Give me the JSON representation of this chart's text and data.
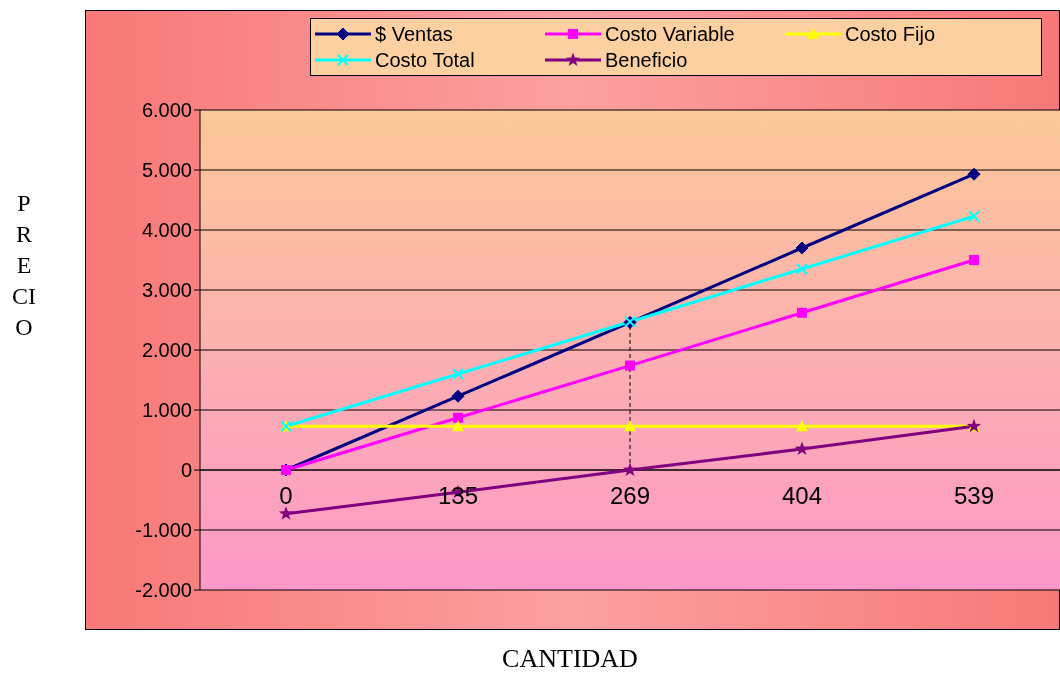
{
  "chart_data": {
    "type": "line",
    "xlabel": "CANTIDAD",
    "ylabel": "PRECIO",
    "categories": [
      "0",
      "135",
      "269",
      "404",
      "539"
    ],
    "series": [
      {
        "name": "$ Ventas",
        "color": "#000080",
        "marker": "diamond",
        "values": [
          0,
          1230,
          2460,
          3700,
          4930
        ]
      },
      {
        "name": "Costo Variable",
        "color": "#ff00ff",
        "marker": "square",
        "values": [
          0,
          870,
          1740,
          2620,
          3500
        ]
      },
      {
        "name": "Costo Fijo",
        "color": "#ffff00",
        "marker": "triangle",
        "values": [
          730,
          730,
          730,
          730,
          730
        ]
      },
      {
        "name": "Costo Total",
        "color": "#00ffff",
        "marker": "cross",
        "values": [
          730,
          1600,
          2470,
          3350,
          4230
        ]
      },
      {
        "name": "Beneficio",
        "color": "#800080",
        "marker": "star",
        "values": [
          -730,
          -370,
          0,
          350,
          730
        ]
      }
    ],
    "ylim": [
      -2000,
      6000
    ],
    "yticks": [
      {
        "value": -2000,
        "label": "-2.000"
      },
      {
        "value": -1000,
        "label": "-1.000"
      },
      {
        "value": 0,
        "label": "0"
      },
      {
        "value": 1000,
        "label": "1.000"
      },
      {
        "value": 2000,
        "label": "2.000"
      },
      {
        "value": 3000,
        "label": "3.000"
      },
      {
        "value": 4000,
        "label": "4.000"
      },
      {
        "value": 5000,
        "label": "5.000"
      },
      {
        "value": 6000,
        "label": "6.000"
      }
    ],
    "grid": "y",
    "legend": "top",
    "ref_lines": [
      {
        "axis": "x",
        "value": "269",
        "color": "#000000",
        "line_style": "dashed"
      }
    ]
  }
}
